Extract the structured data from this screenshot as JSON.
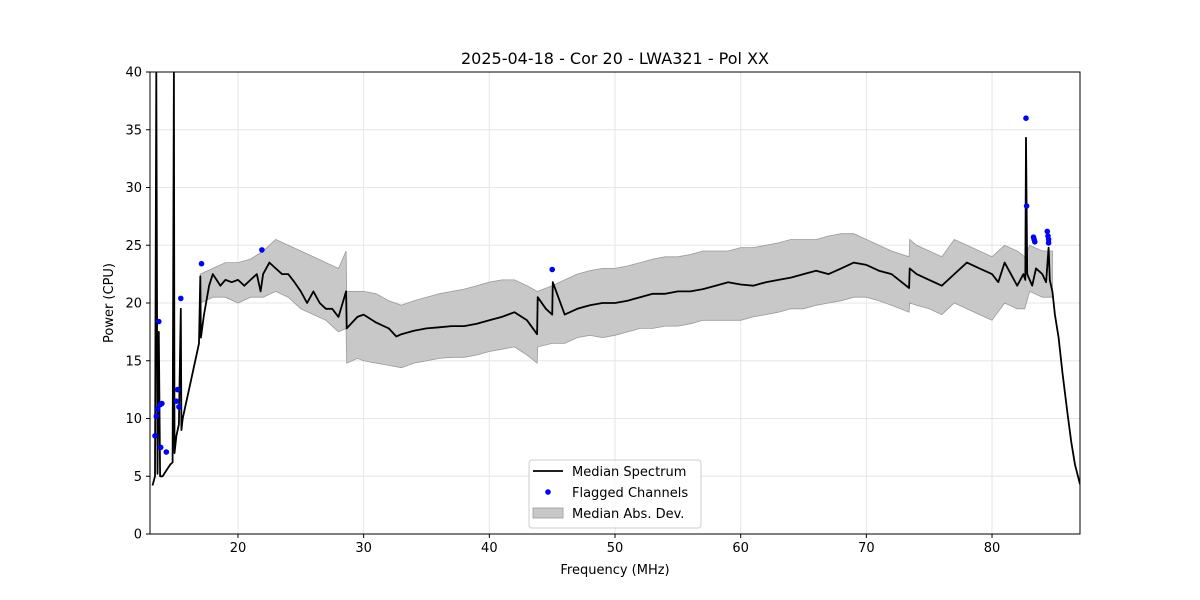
{
  "chart_data": {
    "type": "line",
    "title": "2025-04-18 - Cor 20 - LWA321 - Pol XX",
    "xlabel": "Frequency (MHz)",
    "ylabel": "Power (CPU)",
    "xlim": [
      13.0,
      87.0
    ],
    "ylim": [
      0,
      40
    ],
    "xticks": [
      20,
      30,
      40,
      50,
      60,
      70,
      80
    ],
    "xtick_labels": [
      "20",
      "30",
      "40",
      "50",
      "60",
      "70",
      "80"
    ],
    "yticks": [
      0,
      5,
      10,
      15,
      20,
      25,
      30,
      35,
      40
    ],
    "ytick_labels": [
      "0",
      "5",
      "10",
      "15",
      "20",
      "25",
      "30",
      "35",
      "40"
    ],
    "grid": true,
    "legend_position": "lower-center",
    "legend": [
      {
        "label": "Median Spectrum",
        "kind": "line",
        "color": "#000000"
      },
      {
        "label": "Flagged Channels",
        "kind": "marker",
        "color": "#0000ff"
      },
      {
        "label": "Median Abs. Dev.",
        "kind": "patch",
        "color": "#c8c8c8"
      }
    ],
    "series": [
      {
        "name": "Median Spectrum",
        "color": "#000000",
        "x": [
          13.2,
          13.4,
          13.5,
          13.6,
          13.7,
          13.8,
          14.0,
          14.3,
          14.6,
          14.8,
          14.9,
          14.95,
          15.1,
          15.3,
          15.45,
          15.5,
          15.6,
          15.8,
          16.1,
          16.5,
          16.9,
          17.0,
          17.05,
          17.3,
          17.7,
          18.0,
          18.3,
          18.6,
          19.0,
          19.5,
          20.0,
          20.5,
          21.0,
          21.5,
          21.8,
          22.0,
          22.5,
          23.0,
          23.5,
          24.0,
          24.5,
          25.0,
          25.5,
          26.0,
          26.5,
          27.0,
          27.5,
          28.0,
          28.6,
          28.65,
          29.5,
          30.0,
          31.0,
          32.0,
          32.6,
          33.0,
          34.0,
          35.0,
          36.0,
          37.0,
          38.0,
          39.0,
          40.0,
          41.0,
          42.0,
          43.0,
          43.8,
          43.85,
          44.5,
          45.0,
          45.05,
          46.0,
          47.0,
          48.0,
          49.0,
          50.0,
          51.0,
          52.0,
          53.0,
          54.0,
          55.0,
          56.0,
          57.0,
          58.0,
          59.0,
          60.0,
          61.0,
          62.0,
          63.0,
          64.0,
          65.0,
          66.0,
          67.0,
          68.0,
          69.0,
          70.0,
          71.0,
          72.0,
          73.4,
          73.45,
          74.0,
          75.0,
          76.0,
          77.0,
          78.0,
          79.0,
          80.0,
          80.5,
          81.0,
          81.5,
          82.0,
          82.5,
          82.65,
          82.7,
          82.8,
          83.0,
          83.2,
          83.5,
          84.0,
          84.3,
          84.5,
          84.6,
          84.7,
          84.8,
          85.0,
          85.3,
          85.6,
          86.0,
          86.3,
          86.6,
          87.0
        ],
        "y": [
          4.2,
          5.0,
          40.0,
          5.2,
          17.5,
          5.0,
          5.0,
          5.5,
          6.0,
          6.2,
          40.0,
          7.0,
          8.5,
          9.5,
          19.5,
          9.0,
          10.0,
          11.0,
          12.5,
          14.5,
          16.5,
          22.3,
          17.0,
          19.0,
          21.5,
          22.5,
          22.0,
          21.5,
          22.0,
          21.8,
          22.0,
          21.5,
          22.0,
          22.5,
          21.0,
          22.5,
          23.5,
          23.0,
          22.5,
          22.5,
          21.8,
          21.0,
          20.0,
          21.0,
          20.0,
          19.5,
          19.5,
          18.8,
          21.0,
          17.8,
          18.8,
          19.0,
          18.3,
          17.8,
          17.1,
          17.3,
          17.6,
          17.8,
          17.9,
          18.0,
          18.0,
          18.2,
          18.5,
          18.8,
          19.2,
          18.5,
          17.3,
          20.5,
          19.5,
          19.0,
          21.8,
          19.0,
          19.5,
          19.8,
          20.0,
          20.0,
          20.2,
          20.5,
          20.8,
          20.8,
          21.0,
          21.0,
          21.2,
          21.5,
          21.8,
          21.6,
          21.5,
          21.8,
          22.0,
          22.2,
          22.5,
          22.8,
          22.5,
          23.0,
          23.5,
          23.3,
          22.8,
          22.5,
          21.3,
          23.0,
          22.5,
          22.0,
          21.5,
          22.5,
          23.5,
          23.0,
          22.5,
          21.8,
          23.5,
          22.5,
          21.5,
          22.5,
          22.0,
          34.3,
          22.5,
          22.0,
          21.5,
          23.0,
          22.5,
          21.8,
          24.8,
          22.0,
          21.5,
          21.0,
          19.0,
          17.0,
          14.0,
          10.5,
          8.0,
          6.0,
          4.3
        ]
      },
      {
        "name": "Median Abs. Dev. Upper",
        "color": "#c8c8c8",
        "x": [
          17.0,
          18.0,
          19.0,
          20.0,
          21.0,
          22.0,
          23.0,
          24.0,
          25.0,
          26.0,
          27.0,
          28.0,
          28.6,
          28.65,
          29.5,
          30.0,
          31.0,
          32.0,
          33.0,
          34.0,
          35.0,
          36.0,
          37.0,
          38.0,
          39.0,
          40.0,
          41.0,
          42.0,
          43.0,
          43.8,
          43.85,
          45.0,
          46.0,
          47.0,
          48.0,
          49.0,
          50.0,
          51.0,
          52.0,
          53.0,
          54.0,
          55.0,
          56.0,
          57.0,
          58.0,
          59.0,
          60.0,
          61.0,
          62.0,
          63.0,
          64.0,
          65.0,
          66.0,
          67.0,
          68.0,
          69.0,
          70.0,
          71.0,
          72.0,
          73.4,
          73.45,
          74.0,
          75.0,
          76.0,
          77.0,
          78.0,
          79.0,
          80.0,
          81.0,
          82.0,
          82.6,
          83.0,
          84.0,
          84.8
        ],
        "y": [
          22.5,
          23.0,
          23.5,
          23.5,
          23.8,
          24.5,
          25.5,
          25.0,
          24.5,
          24.0,
          23.5,
          23.0,
          24.5,
          21.0,
          21.0,
          21.0,
          20.8,
          20.2,
          19.8,
          20.2,
          20.5,
          20.8,
          21.0,
          21.2,
          21.5,
          21.8,
          22.0,
          22.0,
          21.5,
          21.0,
          21.0,
          21.5,
          22.0,
          22.5,
          22.8,
          23.0,
          23.0,
          23.2,
          23.5,
          23.8,
          24.0,
          24.0,
          24.2,
          24.5,
          24.5,
          24.5,
          24.8,
          24.8,
          25.0,
          25.2,
          25.5,
          25.5,
          25.5,
          25.8,
          26.0,
          26.0,
          25.5,
          25.0,
          24.5,
          24.0,
          25.5,
          25.0,
          24.5,
          24.0,
          25.5,
          25.0,
          24.5,
          24.0,
          25.0,
          24.5,
          24.0,
          25.0,
          24.5,
          24.5
        ]
      },
      {
        "name": "Median Abs. Dev. Lower",
        "color": "#c8c8c8",
        "x": [
          17.0,
          18.0,
          19.0,
          20.0,
          21.0,
          22.0,
          23.0,
          24.0,
          25.0,
          26.0,
          27.0,
          28.0,
          28.6,
          28.65,
          29.5,
          30.0,
          31.0,
          32.0,
          33.0,
          34.0,
          35.0,
          36.0,
          37.0,
          38.0,
          39.0,
          40.0,
          41.0,
          42.0,
          43.0,
          43.8,
          43.85,
          45.0,
          46.0,
          47.0,
          48.0,
          49.0,
          50.0,
          51.0,
          52.0,
          53.0,
          54.0,
          55.0,
          56.0,
          57.0,
          58.0,
          59.0,
          60.0,
          61.0,
          62.0,
          63.0,
          64.0,
          65.0,
          66.0,
          67.0,
          68.0,
          69.0,
          70.0,
          71.0,
          72.0,
          73.4,
          73.45,
          74.0,
          75.0,
          76.0,
          77.0,
          78.0,
          79.0,
          80.0,
          81.0,
          82.0,
          82.6,
          83.0,
          84.0,
          84.8
        ],
        "y": [
          20.0,
          20.5,
          20.5,
          20.0,
          20.5,
          20.5,
          21.0,
          20.5,
          19.5,
          19.0,
          18.5,
          17.5,
          17.8,
          14.8,
          15.2,
          15.0,
          14.8,
          14.6,
          14.4,
          14.8,
          15.0,
          15.2,
          15.3,
          15.3,
          15.5,
          15.8,
          16.0,
          16.2,
          15.5,
          14.8,
          16.2,
          16.5,
          16.5,
          17.0,
          17.2,
          17.0,
          17.2,
          17.5,
          17.8,
          17.8,
          18.0,
          18.0,
          18.2,
          18.5,
          18.5,
          18.5,
          18.5,
          18.8,
          19.0,
          19.2,
          19.5,
          19.5,
          19.8,
          20.0,
          20.2,
          20.5,
          20.5,
          20.2,
          19.8,
          19.2,
          20.0,
          19.8,
          19.5,
          19.0,
          20.0,
          19.5,
          19.0,
          18.5,
          20.0,
          19.5,
          19.5,
          21.0,
          20.5,
          20.5
        ]
      },
      {
        "name": "Flagged Channels",
        "color": "#0000ff",
        "x": [
          13.4,
          13.5,
          13.6,
          13.7,
          13.8,
          13.85,
          13.95,
          14.3,
          15.1,
          15.2,
          15.3,
          15.45,
          17.1,
          21.9,
          45.0,
          82.7,
          82.75,
          83.3,
          83.35,
          83.4,
          84.4,
          84.45,
          84.5,
          84.5
        ],
        "y": [
          8.5,
          10.2,
          10.8,
          18.4,
          11.2,
          7.5,
          11.3,
          7.1,
          11.5,
          12.5,
          11.0,
          20.4,
          23.4,
          24.6,
          22.9,
          36.0,
          28.4,
          25.7,
          25.5,
          25.3,
          26.2,
          25.8,
          25.5,
          25.2
        ]
      }
    ]
  }
}
